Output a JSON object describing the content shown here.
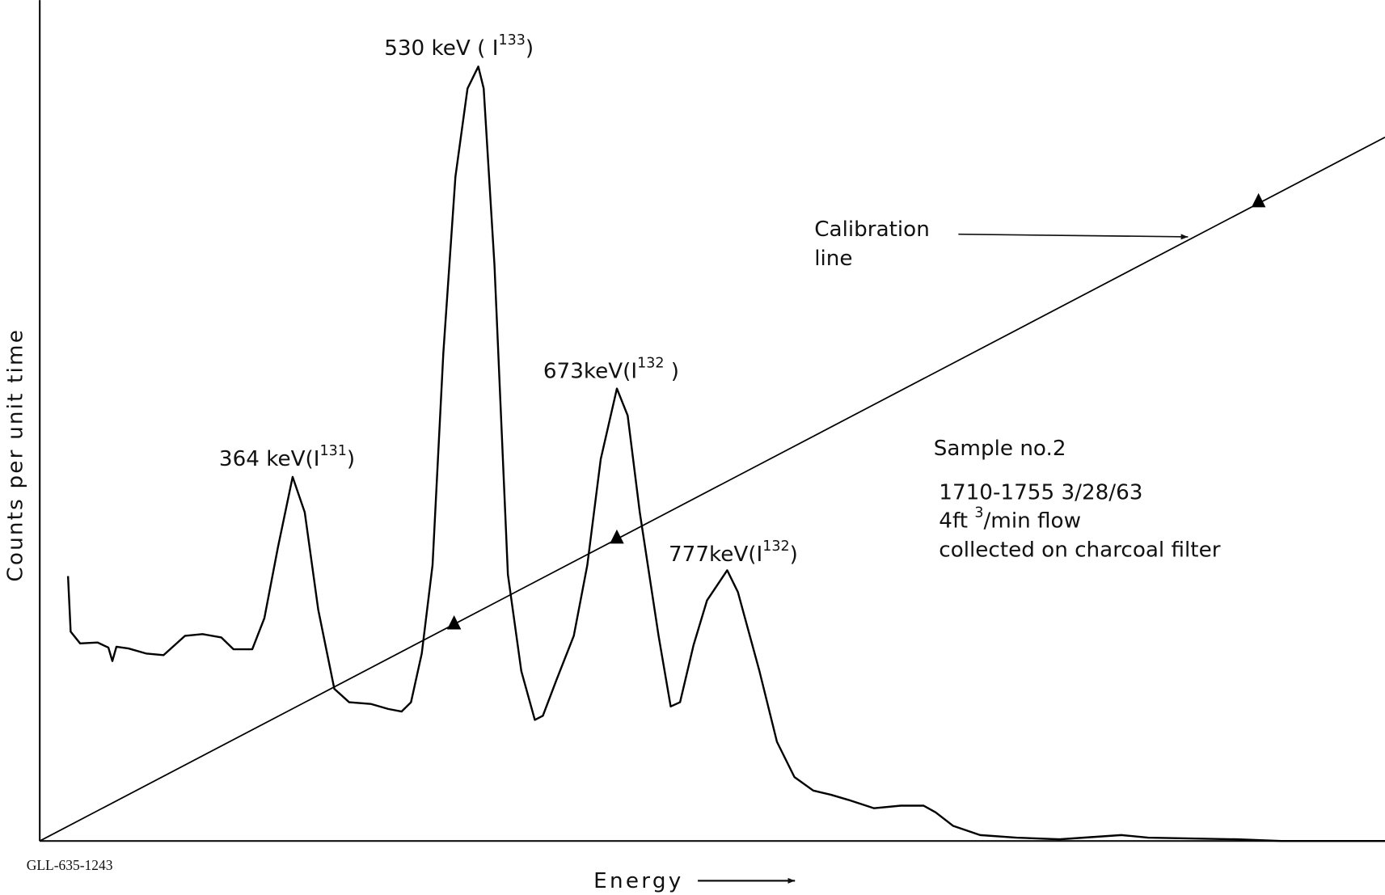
{
  "chart_data": {
    "type": "line",
    "xlabel": "Energy",
    "ylabel": "Counts per unit time",
    "note": "GLL-635-1243",
    "xlim": [
      0,
      100
    ],
    "ylim": [
      0,
      100
    ],
    "color": "#000000",
    "x": [
      2.1,
      2.3,
      3.0,
      4.3,
      5.1,
      5.4,
      5.7,
      6.6,
      7.9,
      9.2,
      10.8,
      12.1,
      13.5,
      14.4,
      15.8,
      16.7,
      17.7,
      18.8,
      19.7,
      20.7,
      21.9,
      23.0,
      24.6,
      25.9,
      26.9,
      27.6,
      28.4,
      29.2,
      30.0,
      30.9,
      31.8,
      32.6,
      33.0,
      33.8,
      34.8,
      35.8,
      36.8,
      37.4,
      38.4,
      39.7,
      40.7,
      41.7,
      42.9,
      43.7,
      44.6,
      46.0,
      46.9,
      47.6,
      48.6,
      49.6,
      51.1,
      51.9,
      53.5,
      54.8,
      56.1,
      57.5,
      58.8,
      60.1,
      62.0,
      64.0,
      65.7,
      66.6,
      67.9,
      69.9,
      72.6,
      75.8,
      80.4,
      82.4,
      89.0,
      92.3,
      100
    ],
    "values": [
      31.5,
      24.9,
      23.5,
      23.6,
      23.0,
      21.4,
      23.1,
      22.9,
      22.3,
      22.1,
      24.4,
      24.6,
      24.2,
      22.8,
      22.8,
      26.5,
      34.9,
      43.3,
      39.1,
      27.5,
      18.1,
      16.5,
      16.3,
      15.7,
      15.4,
      16.5,
      22.3,
      32.8,
      58.0,
      79.0,
      89.5,
      92.1,
      89.5,
      68.5,
      31.7,
      20.2,
      14.4,
      14.9,
      19.1,
      24.4,
      32.8,
      45.4,
      53.8,
      50.6,
      39.1,
      24.4,
      16.0,
      16.5,
      23.3,
      28.6,
      32.2,
      29.6,
      20.2,
      11.8,
      7.6,
      6.0,
      5.5,
      4.9,
      3.9,
      4.2,
      4.2,
      3.4,
      1.8,
      0.7,
      0.4,
      0.2,
      0.7,
      0.4,
      0.2,
      0,
      0
    ],
    "calibration": {
      "label": [
        "Calibration",
        "line"
      ],
      "x": [
        0,
        100
      ],
      "values": [
        0,
        83.7
      ],
      "points_x": [
        30.8,
        42.9,
        90.6
      ],
      "points": [
        25.9,
        36.1,
        76.1
      ]
    },
    "peaks": [
      {
        "text": "364 keV(I",
        "sup": "131",
        "tail": ")"
      },
      {
        "text": "530 keV ( I",
        "sup": "133",
        "tail": ")"
      },
      {
        "text": "673keV(I",
        "sup": "132",
        "tail": " )"
      },
      {
        "text": "777keV(I",
        "sup": "132",
        "tail": ")"
      }
    ],
    "sample": [
      {
        "text": "Sample  no.2"
      },
      {
        "text": "1710-1755  3/28/63"
      },
      {
        "text": "4ft ",
        "sup": "3",
        "tail": "/min flow"
      },
      {
        "text": "collected on charcoal filter"
      }
    ]
  }
}
